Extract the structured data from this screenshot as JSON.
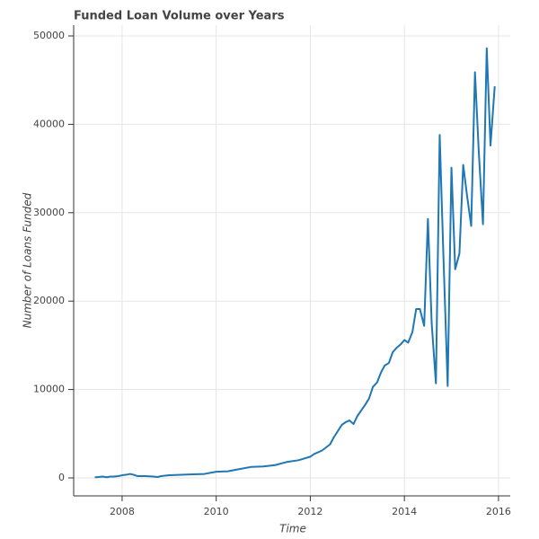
{
  "chart_data": {
    "type": "line",
    "title": "Funded Loan Volume over Years",
    "x_label": "Time",
    "y_label": "Number of Loans Funded",
    "x": [
      2007.42,
      2007.5,
      2007.58,
      2007.67,
      2007.75,
      2007.83,
      2007.92,
      2008.0,
      2008.08,
      2008.17,
      2008.25,
      2008.33,
      2008.5,
      2008.67,
      2008.75,
      2008.83,
      2009.0,
      2009.25,
      2009.5,
      2009.75,
      2010.0,
      2010.25,
      2010.5,
      2010.75,
      2011.0,
      2011.25,
      2011.5,
      2011.75,
      2012.0,
      2012.08,
      2012.25,
      2012.42,
      2012.5,
      2012.67,
      2012.75,
      2012.83,
      2012.92,
      2013.0,
      2013.17,
      2013.25,
      2013.33,
      2013.42,
      2013.5,
      2013.58,
      2013.67,
      2013.75,
      2013.83,
      2013.92,
      2014.0,
      2014.08,
      2014.17,
      2014.25,
      2014.33,
      2014.42,
      2014.5,
      2014.58,
      2014.67,
      2014.75,
      2014.83,
      2014.92,
      2015.0,
      2015.08,
      2015.17,
      2015.25,
      2015.33,
      2015.42,
      2015.5,
      2015.58,
      2015.67,
      2015.75,
      2015.83,
      2015.92
    ],
    "series": [
      {
        "name": "Loans Funded",
        "color": "#1f77b4",
        "values": [
          60,
          100,
          150,
          80,
          150,
          150,
          200,
          300,
          350,
          450,
          350,
          200,
          200,
          150,
          100,
          200,
          300,
          350,
          400,
          450,
          700,
          750,
          1000,
          1250,
          1300,
          1450,
          1800,
          2000,
          2400,
          2700,
          3100,
          3800,
          4600,
          6000,
          6300,
          6500,
          6100,
          7000,
          8300,
          9000,
          10300,
          10800,
          11900,
          12700,
          13000,
          14200,
          14700,
          15100,
          15600,
          15300,
          16500,
          19100,
          19100,
          17200,
          29300,
          17500,
          10700,
          38800,
          25000,
          10400,
          35100,
          23600,
          25400,
          35400,
          32000,
          28500,
          45900,
          37000,
          28700,
          48600,
          37600,
          44300
        ]
      }
    ],
    "xlim": [
      2006.97,
      2016.25
    ],
    "ylim": [
      -2033,
      51220
    ],
    "xticks": [
      2008,
      2010,
      2012,
      2014,
      2016
    ],
    "yticks": [
      0,
      10000,
      20000,
      30000,
      40000,
      50000
    ],
    "grid": true
  }
}
